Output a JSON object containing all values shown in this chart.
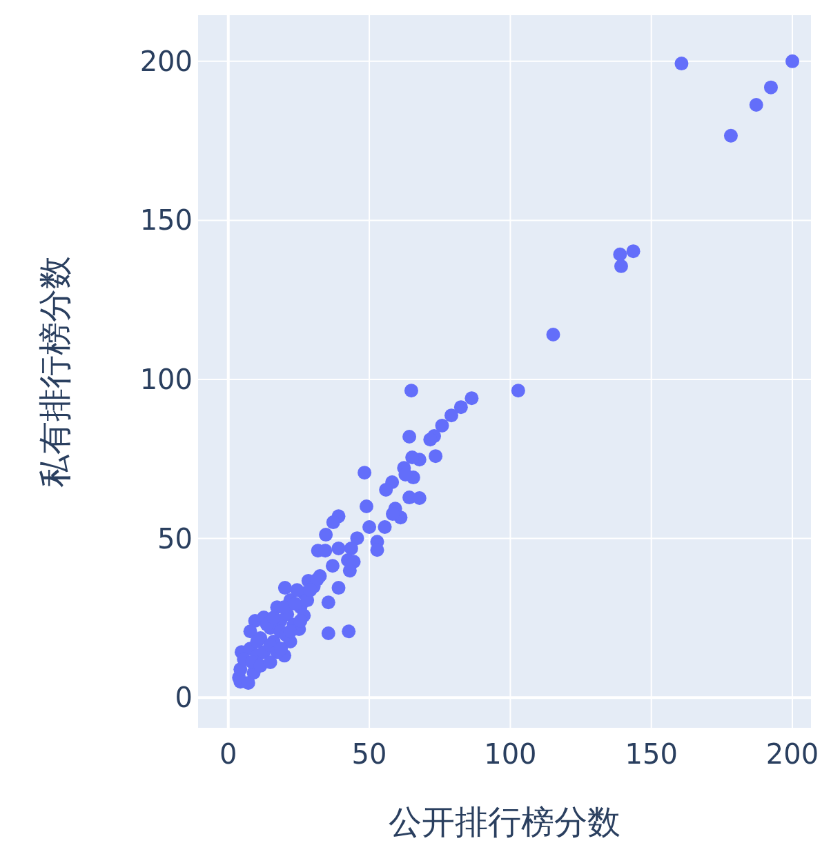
{
  "chart_data": {
    "type": "scatter",
    "xlabel": "公开排行榜分数",
    "ylabel": "私有排行榜分数",
    "xlim": [
      -10.7,
      206.6
    ],
    "ylim": [
      -9.5,
      214.5
    ],
    "xticks": [
      0,
      50,
      100,
      150,
      200
    ],
    "yticks": [
      0,
      50,
      100,
      150,
      200
    ],
    "grid": true,
    "marker": "circle",
    "series": [
      {
        "color": "#636efa",
        "x": [
          160.7,
          200,
          192.4,
          187.2,
          178.2,
          138.9,
          143.6,
          139.3,
          115.2,
          102.8,
          64.9,
          86.3,
          82.5,
          79.1,
          75.8,
          73,
          71.6,
          64.2,
          67.8,
          65.2,
          62.3,
          65.6,
          62.8,
          73.5,
          67.8,
          64.2,
          58.1,
          55.9,
          48.3,
          49,
          59.2,
          61.1,
          58.3,
          55.5,
          50,
          52.8,
          52.8,
          45.7,
          39.1,
          37.2,
          34.6,
          31.8,
          34.4,
          39.1,
          43.6,
          42.4,
          44.5,
          43.1,
          37,
          39.1,
          32.5,
          35.5,
          35.5,
          42.7,
          20.1,
          19.9,
          4.3,
          3.8,
          4.3,
          4.7,
          7.8,
          9.5,
          7.8,
          11.4,
          12.6,
          14.9,
          17.3,
          18.5,
          20.9,
          22,
          23.2,
          25.1,
          25.6,
          26.8,
          28.4,
          30.3,
          31.5,
          26.8,
          22,
          16.1,
          10.2,
          9,
          12.6,
          14.9,
          18.5,
          20.4,
          17.3,
          5.5,
          10.2,
          13.7,
          16.1,
          19.7,
          23.7,
          25.6,
          7.1,
          8.5,
          11.4,
          14.9,
          18.7,
          22,
          28,
          29.1,
          24.4
        ],
        "values": [
          199.3,
          200,
          191.8,
          186.3,
          176.6,
          139.3,
          140.3,
          135.6,
          114.1,
          96.5,
          96.5,
          94.1,
          91.3,
          88.7,
          85.5,
          82.2,
          81.1,
          82,
          74.8,
          75.5,
          72.2,
          69.2,
          70.1,
          75.9,
          62.7,
          62.9,
          67.7,
          65.3,
          70.7,
          60.1,
          59.4,
          56.6,
          57.7,
          53.6,
          53.6,
          49,
          46.4,
          50.1,
          57,
          55.1,
          51.2,
          46.2,
          46.2,
          46.9,
          46.9,
          43.2,
          42.7,
          39.9,
          41.4,
          34.5,
          38.2,
          29.9,
          20.2,
          20.8,
          34.5,
          13.2,
          5,
          6.3,
          8.9,
          14.3,
          15.4,
          24.1,
          20.8,
          18.7,
          25.2,
          21.9,
          28.4,
          24.1,
          26.2,
          30.6,
          22.9,
          21.5,
          28.4,
          32.8,
          36.7,
          34.9,
          37.1,
          25.8,
          17.6,
          17.6,
          13.2,
          7.8,
          14.3,
          16.5,
          20.8,
          19.7,
          14.3,
          12.1,
          17.6,
          23,
          25.2,
          28.4,
          29.5,
          24.1,
          4.6,
          11.1,
          10,
          11.1,
          15.4,
          20.8,
          30.6,
          33.8,
          33.8
        ]
      }
    ]
  }
}
